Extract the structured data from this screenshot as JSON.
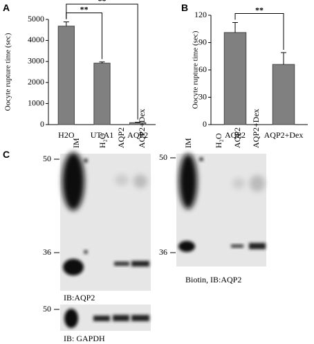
{
  "chart_data": [
    {
      "type": "bar",
      "panel": "A",
      "ylabel": "Oocyte rupture time (sec)",
      "categories": [
        "H2O",
        "UT-A1",
        "AQP2"
      ],
      "values": [
        4680,
        2920,
        90
      ],
      "errors": [
        200,
        60,
        20
      ],
      "color": "#808080",
      "ylim": [
        0,
        5000
      ],
      "yticks": [
        0,
        1000,
        2000,
        3000,
        4000,
        5000
      ],
      "significance": [
        {
          "from": 0,
          "to": 1,
          "label": "**"
        },
        {
          "from": 0,
          "to": 2,
          "label": "**"
        }
      ]
    },
    {
      "type": "bar",
      "panel": "B",
      "ylabel": "Oocyte rupture time (sec)",
      "categories": [
        "AQP2",
        "AQP2+Dex"
      ],
      "values": [
        101,
        66
      ],
      "errors": [
        11,
        13
      ],
      "color": "#808080",
      "ylim": [
        0,
        120
      ],
      "yticks": [
        0,
        30,
        60,
        90,
        120
      ],
      "significance": [
        {
          "from": 0,
          "to": 1,
          "label": "**"
        }
      ]
    }
  ],
  "panel_c": {
    "label": "C",
    "blots": [
      {
        "lanes": [
          "IM",
          "H₂O",
          "AQP2",
          "AQP2+Dex"
        ],
        "markers": [
          50,
          36
        ],
        "caption": "IB:AQP2"
      },
      {
        "lanes": [
          "IM",
          "H₂O",
          "AQP2",
          "AQP2+Dex"
        ],
        "markers": [
          50,
          36
        ],
        "caption": "Biotin, IB:AQP2"
      },
      {
        "markers": [
          50
        ],
        "caption": "IB: GAPDH"
      }
    ]
  }
}
